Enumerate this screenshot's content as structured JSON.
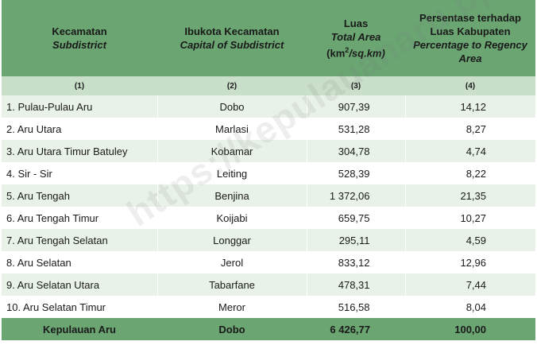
{
  "header": {
    "col1": {
      "id": "Kecamatan",
      "en": "Subdistrict",
      "num": "(1)"
    },
    "col2": {
      "id": "Ibukota Kecamatan",
      "en": "Capital of Subdistrict",
      "num": "(2)"
    },
    "col3": {
      "id": "Luas",
      "en": "Total Area",
      "unit_pre": "(km",
      "unit_sup": "2",
      "unit_post": "/sq.km)",
      "num": "(3)"
    },
    "col4": {
      "id_line1": "Persentase terhadap",
      "id_line2": "Luas Kabupaten",
      "en_line1": "Percentage to Regency",
      "en_line2": "Area",
      "num": "(4)"
    }
  },
  "rows": [
    {
      "name": "1.  Pulau-Pulau Aru",
      "capital": "Dobo",
      "area": "907,39",
      "pct": "14,12"
    },
    {
      "name": "2.  Aru Utara",
      "capital": "Marlasi",
      "area": "531,28",
      "pct": "8,27"
    },
    {
      "name": "3.  Aru Utara Timur Batuley",
      "capital": "Kobamar",
      "area": "304,78",
      "pct": "4,74"
    },
    {
      "name": "4.  Sir - Sir",
      "capital": "Leiting",
      "area": "528,39",
      "pct": "8,22"
    },
    {
      "name": "5.  Aru Tengah",
      "capital": "Benjina",
      "area": "1 372,06",
      "pct": "21,35"
    },
    {
      "name": "6.  Aru Tengah Timur",
      "capital": "Koijabi",
      "area": "659,75",
      "pct": "10,27"
    },
    {
      "name": "7.  Aru Tengah Selatan",
      "capital": "Longgar",
      "area": "295,11",
      "pct": "4,59"
    },
    {
      "name": "8.  Aru Selatan",
      "capital": "Jerol",
      "area": "833,12",
      "pct": "12,96"
    },
    {
      "name": "9.  Aru Selatan Utara",
      "capital": "Tabarfane",
      "area": "478,31",
      "pct": "7,44"
    },
    {
      "name": "10. Aru Selatan Timur",
      "capital": "Meror",
      "area": "516,58",
      "pct": "8,04"
    }
  ],
  "total": {
    "name": "Kepulauan Aru",
    "capital": "Dobo",
    "area": "6 426,77",
    "pct": "100,00"
  },
  "watermark": "https://kepulauanaru.bps.go.id",
  "colors": {
    "header_bg": "#6aa572",
    "num_row_bg": "#c9dfc9",
    "stripe_bg": "#e9f2e8"
  }
}
